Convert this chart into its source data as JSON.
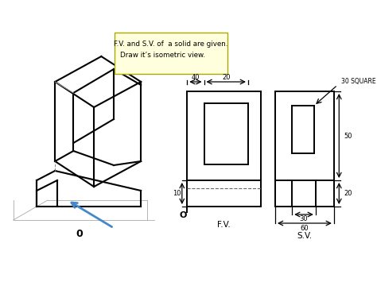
{
  "bg_color": "#ffffff",
  "title_box_bg": "#ffffdd",
  "title_line1": "F.V. and S.V. of  a solid are given.",
  "title_line2": "Draw it’s isometric view.",
  "fv_label": "F.V.",
  "sv_label": "S.V.",
  "origin_label": "O",
  "iso_label": "0",
  "dim_40": "40",
  "dim_20_top": "20",
  "dim_30_sq": "30 SQUARE",
  "dim_50": "50",
  "dim_20_bot": "20",
  "dim_30_bot": "30",
  "dim_60": "60",
  "dim_10": "10",
  "line_color": "#000000",
  "thin_color": "#aaaaaa",
  "dash_color": "#666666",
  "arrow_color": "#4488cc",
  "dim_lw": 0.9,
  "iso_lw": 1.5,
  "fv_lw": 1.4,
  "sv_lw": 1.4
}
